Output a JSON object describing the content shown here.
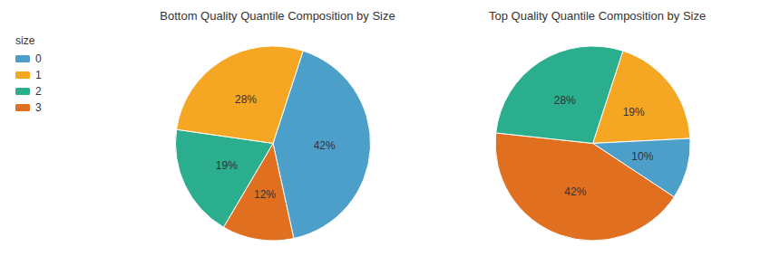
{
  "chart_data": [
    {
      "type": "pie",
      "title": "Bottom Quality Quantile Composition by Size",
      "categories": [
        "0",
        "3",
        "2",
        "1"
      ],
      "values": [
        42,
        12,
        19,
        28
      ],
      "value_labels": [
        "42%",
        "12%",
        "19%",
        "28%"
      ],
      "colors": [
        "#4C9FC8",
        "#E07020",
        "#2BAE8E",
        "#F5A623"
      ],
      "data_labels": true,
      "legend": "upper left",
      "legend_title": "size"
    },
    {
      "type": "pie",
      "title": "Top Quality Quantile Composition by Size",
      "categories": [
        "1",
        "0",
        "3",
        "2"
      ],
      "values": [
        19,
        10,
        42,
        28
      ],
      "value_labels": [
        "19%",
        "10%",
        "42%",
        "28%"
      ],
      "colors": [
        "#F5A623",
        "#4C9FC8",
        "#E07020",
        "#2BAE8E"
      ],
      "data_labels": true
    }
  ]
}
